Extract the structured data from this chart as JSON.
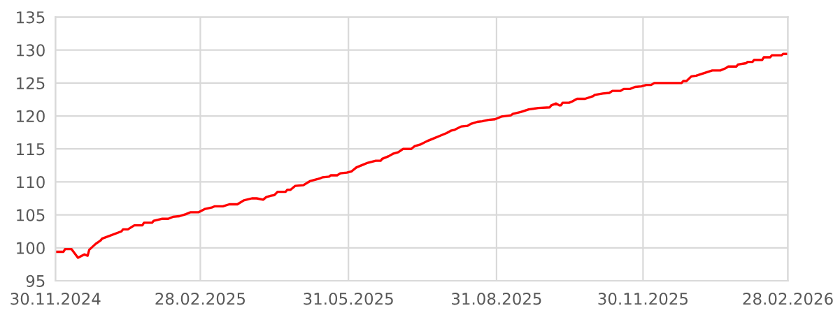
{
  "chart_data": {
    "type": "line",
    "color": "#ff0000",
    "x": [
      "2024-11-30",
      "2024-12-05",
      "2024-12-06",
      "2024-12-10",
      "2024-12-14",
      "2024-12-18",
      "2024-12-20",
      "2024-12-21",
      "2024-12-25",
      "2024-12-28",
      "2024-12-29",
      "2025-01-10",
      "2025-01-11",
      "2025-01-14",
      "2025-01-18",
      "2025-01-23",
      "2025-01-24",
      "2025-01-29",
      "2025-01-30",
      "2025-02-04",
      "2025-02-08",
      "2025-02-11",
      "2025-02-15",
      "2025-02-19",
      "2025-02-22",
      "2025-02-27",
      "2025-03-03",
      "2025-03-07",
      "2025-03-09",
      "2025-03-14",
      "2025-03-18",
      "2025-03-23",
      "2025-03-27",
      "2025-04-01",
      "2025-04-04",
      "2025-04-08",
      "2025-04-10",
      "2025-04-13",
      "2025-04-15",
      "2025-04-17",
      "2025-04-22",
      "2025-04-23",
      "2025-04-25",
      "2025-04-28",
      "2025-05-03",
      "2025-05-07",
      "2025-05-13",
      "2025-05-15",
      "2025-05-19",
      "2025-05-20",
      "2025-05-24",
      "2025-05-26",
      "2025-05-30",
      "2025-06-02",
      "2025-06-05",
      "2025-06-09",
      "2025-06-12",
      "2025-06-17",
      "2025-06-20",
      "2025-06-21",
      "2025-06-25",
      "2025-06-28",
      "2025-07-01",
      "2025-07-04",
      "2025-07-09",
      "2025-07-11",
      "2025-07-15",
      "2025-07-19",
      "2025-07-23",
      "2025-07-26",
      "2025-07-31",
      "2025-08-03",
      "2025-08-05",
      "2025-08-09",
      "2025-08-13",
      "2025-08-15",
      "2025-08-19",
      "2025-08-22",
      "2025-08-26",
      "2025-08-30",
      "2025-09-03",
      "2025-09-09",
      "2025-09-10",
      "2025-09-15",
      "2025-09-20",
      "2025-09-26",
      "2025-10-03",
      "2025-10-04",
      "2025-10-07",
      "2025-10-09",
      "2025-10-10",
      "2025-10-11",
      "2025-10-15",
      "2025-10-17",
      "2025-10-20",
      "2025-10-25",
      "2025-10-30",
      "2025-10-31",
      "2025-11-05",
      "2025-11-09",
      "2025-11-11",
      "2025-11-16",
      "2025-11-18",
      "2025-11-22",
      "2025-11-25",
      "2025-11-29",
      "2025-12-02",
      "2025-12-05",
      "2025-12-07",
      "2025-12-24",
      "2025-12-25",
      "2025-12-27",
      "2025-12-30",
      "2026-01-02",
      "2026-01-12",
      "2026-01-17",
      "2026-01-20",
      "2026-01-22",
      "2026-01-27",
      "2026-01-28",
      "2026-02-02",
      "2026-02-03",
      "2026-02-06",
      "2026-02-07",
      "2026-02-12",
      "2026-02-13",
      "2026-02-17",
      "2026-02-18",
      "2026-02-24",
      "2026-02-25",
      "2026-02-28"
    ],
    "values": [
      99.4,
      99.4,
      99.8,
      99.8,
      98.5,
      99.0,
      98.8,
      99.7,
      100.6,
      101.1,
      101.4,
      102.5,
      102.8,
      102.8,
      103.4,
      103.4,
      103.8,
      103.8,
      104.1,
      104.4,
      104.4,
      104.7,
      104.8,
      105.1,
      105.4,
      105.4,
      105.9,
      106.1,
      106.3,
      106.3,
      106.6,
      106.6,
      107.2,
      107.5,
      107.5,
      107.3,
      107.7,
      107.9,
      108.0,
      108.5,
      108.5,
      108.8,
      108.8,
      109.4,
      109.5,
      110.1,
      110.5,
      110.7,
      110.8,
      111.0,
      111.0,
      111.3,
      111.4,
      111.6,
      112.2,
      112.6,
      112.9,
      113.2,
      113.2,
      113.5,
      113.9,
      114.3,
      114.5,
      115.0,
      115.0,
      115.4,
      115.7,
      116.2,
      116.6,
      116.9,
      117.4,
      117.8,
      117.9,
      118.4,
      118.5,
      118.8,
      119.1,
      119.2,
      119.4,
      119.5,
      119.9,
      120.1,
      120.3,
      120.6,
      121.0,
      121.2,
      121.3,
      121.6,
      121.9,
      121.6,
      121.6,
      122.0,
      122.0,
      122.2,
      122.6,
      122.6,
      123.0,
      123.2,
      123.4,
      123.5,
      123.8,
      123.8,
      124.1,
      124.1,
      124.4,
      124.5,
      124.7,
      124.7,
      125.0,
      125.0,
      125.3,
      125.3,
      126.0,
      126.1,
      126.9,
      126.9,
      127.2,
      127.5,
      127.5,
      127.8,
      128.0,
      128.2,
      128.2,
      128.5,
      128.5,
      128.9,
      128.9,
      129.2,
      129.2,
      129.4,
      129.4
    ],
    "xlim": [
      "2024-11-30",
      "2026-02-28"
    ],
    "xticks": [
      {
        "value": "2024-11-30",
        "label": "30.11.2024"
      },
      {
        "value": "2025-02-28",
        "label": "28.02.2025"
      },
      {
        "value": "2025-05-31",
        "label": "31.05.2025"
      },
      {
        "value": "2025-08-31",
        "label": "31.08.2025"
      },
      {
        "value": "2025-11-30",
        "label": "30.11.2025"
      },
      {
        "value": "2026-02-28",
        "label": "28.02.2026"
      }
    ],
    "ylim": [
      95,
      135
    ],
    "yticks": [
      95,
      100,
      105,
      110,
      115,
      120,
      125,
      130,
      135
    ],
    "grid": true
  }
}
